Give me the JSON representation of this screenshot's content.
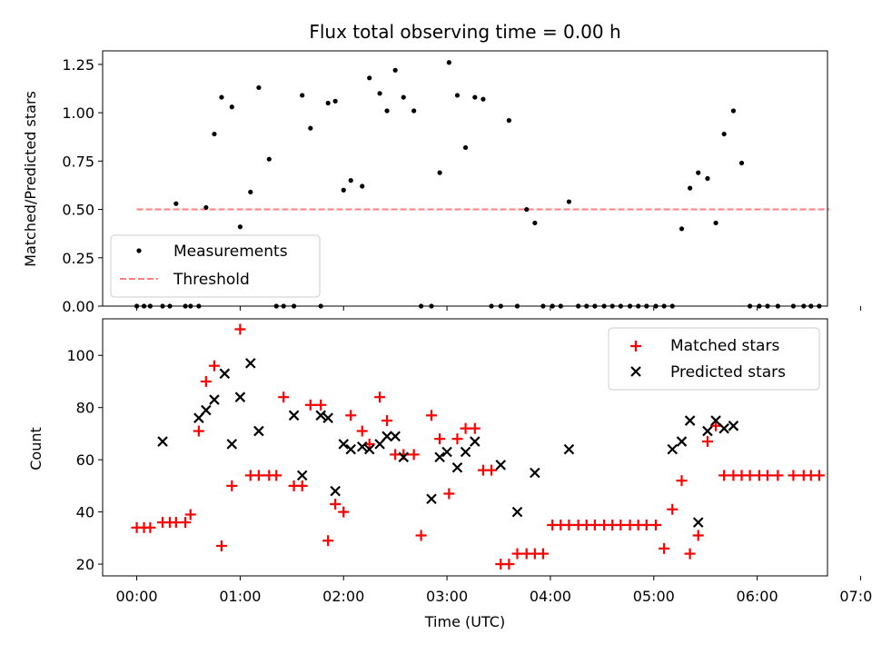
{
  "chart_data": [
    {
      "type": "scatter",
      "title": "Flux total observing time = 0.00 h",
      "xlabel": "",
      "ylabel": "Matched/Predicted stars",
      "xlim": [
        -0.33,
        6.68
      ],
      "ylim": [
        0,
        1.32
      ],
      "yticks": [
        "0.00",
        "0.25",
        "0.50",
        "0.75",
        "1.00",
        "1.25"
      ],
      "legend_position": "lower-left",
      "series": [
        {
          "name": "Measurements",
          "color": "#000000",
          "marker": "dot",
          "x": [
            0,
            0.07,
            0.13,
            0.25,
            0.32,
            0.38,
            0.47,
            0.52,
            0.6,
            0.67,
            0.75,
            0.82,
            0.92,
            1,
            1.1,
            1.18,
            1.28,
            1.35,
            1.42,
            1.52,
            1.6,
            1.68,
            1.78,
            1.85,
            1.92,
            2,
            2.07,
            2.18,
            2.25,
            2.35,
            2.42,
            2.5,
            2.58,
            2.68,
            2.75,
            2.85,
            2.93,
            3.02,
            3.1,
            3.18,
            3.27,
            3.35,
            3.43,
            3.52,
            3.6,
            3.68,
            3.77,
            3.85,
            3.93,
            4.02,
            4.1,
            4.18,
            4.27,
            4.35,
            4.43,
            4.52,
            4.6,
            4.68,
            4.77,
            4.85,
            4.93,
            5.02,
            5.1,
            5.18,
            5.27,
            5.35,
            5.43,
            5.52,
            5.6,
            5.68,
            5.77,
            5.85,
            5.93,
            6.02,
            6.1,
            6.2,
            6.35,
            6.45,
            6.52,
            6.6
          ],
          "y": [
            0,
            0,
            0,
            0,
            0,
            0.53,
            0,
            0,
            0,
            0.51,
            0.89,
            1.08,
            1.03,
            0.41,
            0.59,
            1.13,
            0.76,
            0,
            0,
            0,
            1.09,
            0.92,
            0,
            1.05,
            1.06,
            0.6,
            0.65,
            0.62,
            1.18,
            1.1,
            1.01,
            1.22,
            1.08,
            1.01,
            0,
            0,
            0.69,
            1.26,
            1.09,
            0.82,
            1.08,
            1.07,
            0,
            0,
            0.96,
            0,
            0.5,
            0.43,
            0,
            0,
            0,
            0.54,
            0,
            0,
            0,
            0,
            0,
            0,
            0,
            0,
            0,
            0,
            0,
            0,
            0.4,
            0.61,
            0.69,
            0.66,
            0.43,
            0.89,
            1.01,
            0.74,
            0,
            0,
            0,
            0,
            0,
            0,
            0,
            0
          ]
        },
        {
          "name": "Threshold",
          "color": "#ff7f7f",
          "style": "dashed",
          "x": [
            0,
            6.7
          ],
          "y": [
            0.5,
            0.5
          ]
        }
      ]
    },
    {
      "type": "scatter",
      "title": "",
      "xlabel": "Time (UTC)",
      "ylabel": "Count",
      "xlim": [
        -0.33,
        6.68
      ],
      "ylim": [
        15.5,
        114
      ],
      "x_ticks": [
        {
          "v": 0,
          "label": "00:00"
        },
        {
          "v": 1,
          "label": "01:00"
        },
        {
          "v": 2,
          "label": "02:00"
        },
        {
          "v": 3,
          "label": "03:00"
        },
        {
          "v": 4,
          "label": "04:00"
        },
        {
          "v": 5,
          "label": "05:00"
        },
        {
          "v": 6,
          "label": "06:00"
        },
        {
          "v": 7,
          "label": "07:00"
        }
      ],
      "yticks": [
        "20",
        "40",
        "60",
        "80",
        "100"
      ],
      "legend_position": "upper-right",
      "series": [
        {
          "name": "Matched stars",
          "color": "#ff0000",
          "marker": "plus",
          "x": [
            0,
            0.07,
            0.13,
            0.25,
            0.32,
            0.38,
            0.47,
            0.52,
            0.6,
            0.67,
            0.75,
            0.82,
            0.92,
            1,
            1.1,
            1.18,
            1.28,
            1.35,
            1.42,
            1.52,
            1.6,
            1.68,
            1.78,
            1.85,
            1.92,
            2,
            2.07,
            2.18,
            2.25,
            2.35,
            2.42,
            2.5,
            2.58,
            2.68,
            2.75,
            2.85,
            2.93,
            3.02,
            3.1,
            3.18,
            3.27,
            3.35,
            3.43,
            3.52,
            3.6,
            3.68,
            3.77,
            3.85,
            3.93,
            4.02,
            4.1,
            4.18,
            4.27,
            4.35,
            4.43,
            4.52,
            4.6,
            4.68,
            4.77,
            4.85,
            4.93,
            5.02,
            5.1,
            5.18,
            5.27,
            5.35,
            5.43,
            5.52,
            5.6,
            5.68,
            5.77,
            5.85,
            5.93,
            6.02,
            6.1,
            6.2,
            6.35,
            6.45,
            6.52,
            6.6
          ],
          "y": [
            34,
            34,
            34,
            36,
            36,
            36,
            36,
            39,
            71,
            90,
            96,
            27,
            50,
            110,
            54,
            54,
            54,
            54,
            84,
            50,
            50,
            81,
            81,
            29,
            43,
            40,
            77,
            71,
            66,
            84,
            75,
            62,
            62,
            62,
            31,
            77,
            68,
            47,
            68,
            72,
            72,
            56,
            56,
            20,
            20,
            24,
            24,
            24,
            24,
            35,
            35,
            35,
            35,
            35,
            35,
            35,
            35,
            35,
            35,
            35,
            35,
            35,
            26,
            41,
            52,
            24,
            31,
            67,
            73,
            54,
            54,
            54,
            54,
            54,
            54,
            54,
            54,
            54,
            54,
            54
          ]
        },
        {
          "name": "Predicted stars",
          "color": "#000000",
          "marker": "x",
          "x": [
            0.25,
            0.6,
            0.67,
            0.75,
            0.85,
            0.92,
            1,
            1.1,
            1.18,
            1.52,
            1.6,
            1.78,
            1.85,
            1.92,
            2,
            2.07,
            2.18,
            2.25,
            2.35,
            2.42,
            2.5,
            2.58,
            2.85,
            2.93,
            3,
            3.1,
            3.18,
            3.27,
            3.52,
            3.68,
            3.85,
            4.18,
            5.18,
            5.27,
            5.35,
            5.43,
            5.52,
            5.6,
            5.68,
            5.77
          ],
          "y": [
            67,
            76,
            79,
            83,
            93,
            66,
            84,
            97,
            71,
            77,
            54,
            77,
            76,
            48,
            66,
            64,
            65,
            64,
            66,
            69,
            69,
            61,
            45,
            61,
            63,
            57,
            63,
            67,
            58,
            40,
            55,
            64,
            64,
            67,
            75,
            36,
            71,
            75,
            72,
            73
          ]
        }
      ]
    }
  ]
}
